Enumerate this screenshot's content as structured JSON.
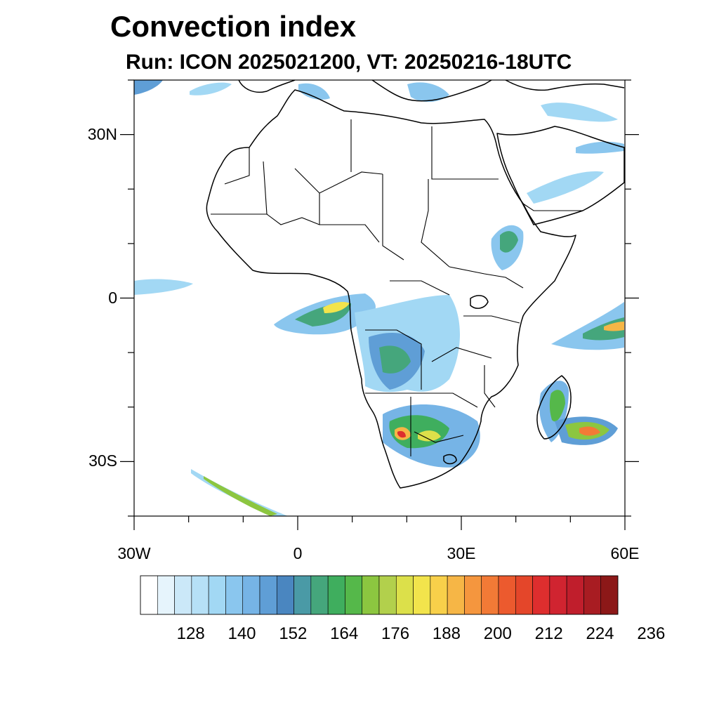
{
  "title": "Convection index",
  "subtitle": "Run: ICON 2025021200,  VT: 20250216-18UTC",
  "map": {
    "region": "Africa",
    "lon_range": [
      -30,
      60
    ],
    "lat_range": [
      -40,
      40
    ],
    "lat_ticks": [
      {
        "value": 30,
        "label": "30N"
      },
      {
        "value": 0,
        "label": "0"
      },
      {
        "value": -30,
        "label": "30S"
      }
    ],
    "lon_ticks": [
      {
        "value": -30,
        "label": "30W"
      },
      {
        "value": 0,
        "label": "0"
      },
      {
        "value": 30,
        "label": "30E"
      },
      {
        "value": 60,
        "label": "60E"
      }
    ],
    "coastline_color": "#000000"
  },
  "colorbar": {
    "colors": [
      "#ffffff",
      "#e6f4fc",
      "#cbe8f8",
      "#b6e0f6",
      "#a2d8f4",
      "#8ac6ee",
      "#76b4e6",
      "#5f9ed6",
      "#4a86c0",
      "#4a9aa6",
      "#45a67c",
      "#3fae5e",
      "#55b84a",
      "#8cc640",
      "#b2d04c",
      "#dce04a",
      "#f2e44c",
      "#f8d04a",
      "#f6b646",
      "#f5963e",
      "#f27a36",
      "#ec5a2e",
      "#e4462a",
      "#de2e2e",
      "#d02430",
      "#c01e2c",
      "#a81c22",
      "#8c1818"
    ],
    "labels": [
      "128",
      "140",
      "152",
      "164",
      "176",
      "188",
      "200",
      "212",
      "224",
      "236"
    ]
  }
}
